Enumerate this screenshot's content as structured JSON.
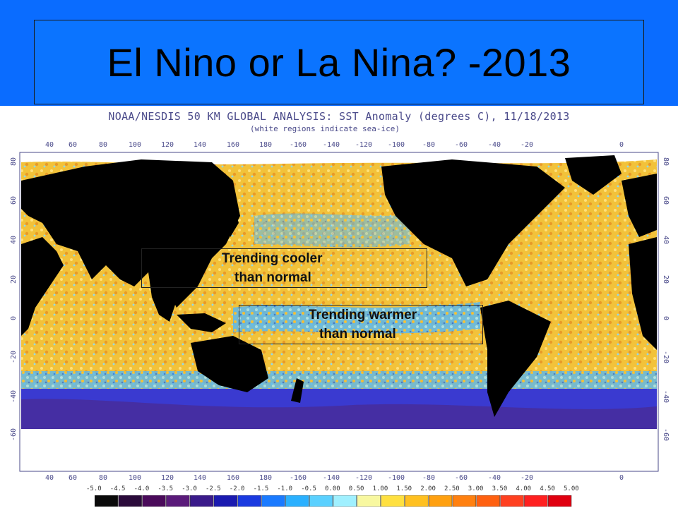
{
  "slide": {
    "title": "El Nino or La Nina? -2013"
  },
  "map": {
    "title": "NOAA/NESDIS 50 KM GLOBAL ANALYSIS: SST Anomaly (degrees C), 11/18/2013",
    "subtitle": "(white regions indicate sea-ice)",
    "lon_ticks": [
      "40",
      "60",
      "80",
      "100",
      "120",
      "140",
      "160",
      "180",
      "-160",
      "-140",
      "-120",
      "-100",
      "-80",
      "-60",
      "-40",
      "-20",
      "0"
    ],
    "lat_ticks": [
      "80",
      "60",
      "40",
      "20",
      "0",
      "-20",
      "-40",
      "-60"
    ],
    "annotations": [
      {
        "line1": "Trending cooler",
        "line2": "than normal"
      },
      {
        "line1": "Trending warmer",
        "line2": "than normal"
      }
    ]
  },
  "legend": {
    "labels": [
      "-5.0",
      "-4.5",
      "-4.0",
      "-3.5",
      "-3.0",
      "-2.5",
      "-2.0",
      "-1.5",
      "-1.0",
      "-0.5",
      "0.00",
      "0.50",
      "1.00",
      "1.50",
      "2.00",
      "2.50",
      "3.00",
      "3.50",
      "4.00",
      "4.50",
      "5.00"
    ],
    "colors": [
      "#0a0a0a",
      "#2a0a3a",
      "#4a0a5a",
      "#5a1a7a",
      "#3a1a8a",
      "#1a1ab0",
      "#1a3ae0",
      "#1a7aff",
      "#2ab0ff",
      "#5ad0ff",
      "#a0f0ff",
      "#f8f8a0",
      "#ffe040",
      "#ffc020",
      "#ffa010",
      "#ff8010",
      "#ff6010",
      "#ff4020",
      "#ff2020",
      "#e00010"
    ]
  }
}
